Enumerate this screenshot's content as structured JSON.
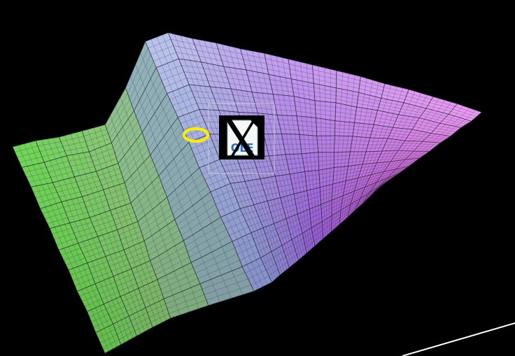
{
  "chart_data": {
    "type": "surface",
    "x": [
      0,
      0.05,
      0.1,
      0.15,
      0.2,
      0.25,
      0.3,
      0.35,
      0.4,
      0.45,
      0.5,
      0.55,
      0.6,
      0.65,
      0.7,
      0.75,
      0.8,
      0.85,
      0.9,
      0.95,
      1
    ],
    "y": [
      0,
      0.1,
      0.2,
      0.3,
      0.4,
      0.5,
      0.6,
      0.7,
      0.8,
      0.9,
      1
    ],
    "z": [
      [
        0,
        0.07,
        0.12,
        0.19,
        0.26,
        0.56,
        0.93,
        1.02,
        1.0,
        0.99,
        0.97,
        0.96,
        0.94,
        0.92,
        0.9,
        0.88,
        0.85,
        0.83,
        0.8,
        0.77,
        0.73
      ],
      [
        0,
        0.06,
        0.13,
        0.18,
        0.27,
        0.55,
        0.92,
        1.01,
        1.0,
        0.98,
        0.97,
        0.95,
        0.93,
        0.91,
        0.89,
        0.87,
        0.84,
        0.82,
        0.79,
        0.76,
        0.72
      ],
      [
        0.01,
        0.06,
        0.12,
        0.18,
        0.26,
        0.55,
        0.91,
        1.0,
        0.99,
        0.98,
        0.96,
        0.95,
        0.94,
        0.91,
        0.9,
        0.87,
        0.85,
        0.82,
        0.8,
        0.76,
        0.73
      ],
      [
        0,
        0.07,
        0.12,
        0.19,
        0.26,
        0.54,
        0.92,
        1.0,
        0.99,
        0.97,
        0.96,
        0.94,
        0.93,
        0.91,
        0.88,
        0.86,
        0.84,
        0.81,
        0.79,
        0.75,
        0.72
      ],
      [
        0.01,
        0.06,
        0.11,
        0.18,
        0.25,
        0.55,
        0.92,
        1.0,
        0.98,
        0.98,
        0.96,
        0.95,
        0.93,
        0.9,
        0.89,
        0.87,
        0.84,
        0.82,
        0.78,
        0.76,
        0.73
      ],
      [
        0,
        0.06,
        0.12,
        0.18,
        0.26,
        0.55,
        0.91,
        0.99,
        0.99,
        0.97,
        0.95,
        0.94,
        0.92,
        0.91,
        0.88,
        0.86,
        0.83,
        0.81,
        0.79,
        0.75,
        0.72
      ],
      [
        0.01,
        0.07,
        0.12,
        0.17,
        0.26,
        0.54,
        0.92,
        1.0,
        0.98,
        0.97,
        0.96,
        0.94,
        0.93,
        0.9,
        0.89,
        0.86,
        0.84,
        0.81,
        0.78,
        0.76,
        0.73
      ],
      [
        0,
        0.06,
        0.12,
        0.18,
        0.25,
        0.55,
        0.91,
        0.99,
        0.98,
        0.97,
        0.95,
        0.94,
        0.92,
        0.9,
        0.88,
        0.86,
        0.83,
        0.81,
        0.79,
        0.75,
        0.72
      ],
      [
        0.01,
        0.06,
        0.11,
        0.18,
        0.26,
        0.54,
        0.92,
        1.0,
        0.99,
        0.96,
        0.95,
        0.93,
        0.92,
        0.9,
        0.87,
        0.85,
        0.83,
        0.8,
        0.78,
        0.75,
        0.72
      ],
      [
        0,
        0.07,
        0.12,
        0.18,
        0.26,
        0.55,
        0.91,
        0.99,
        0.98,
        0.97,
        0.95,
        0.94,
        0.91,
        0.9,
        0.88,
        0.85,
        0.83,
        0.81,
        0.78,
        0.75,
        0.71
      ],
      [
        0,
        0.06,
        0.12,
        0.18,
        0.26,
        0.55,
        0.92,
        1.0,
        0.98,
        0.97,
        0.96,
        0.94,
        0.92,
        0.9,
        0.88,
        0.86,
        0.84,
        0.81,
        0.79,
        0.76,
        0.73
      ]
    ],
    "tick_labels": false,
    "grid": false,
    "annotations": [
      "OLE"
    ]
  }
}
